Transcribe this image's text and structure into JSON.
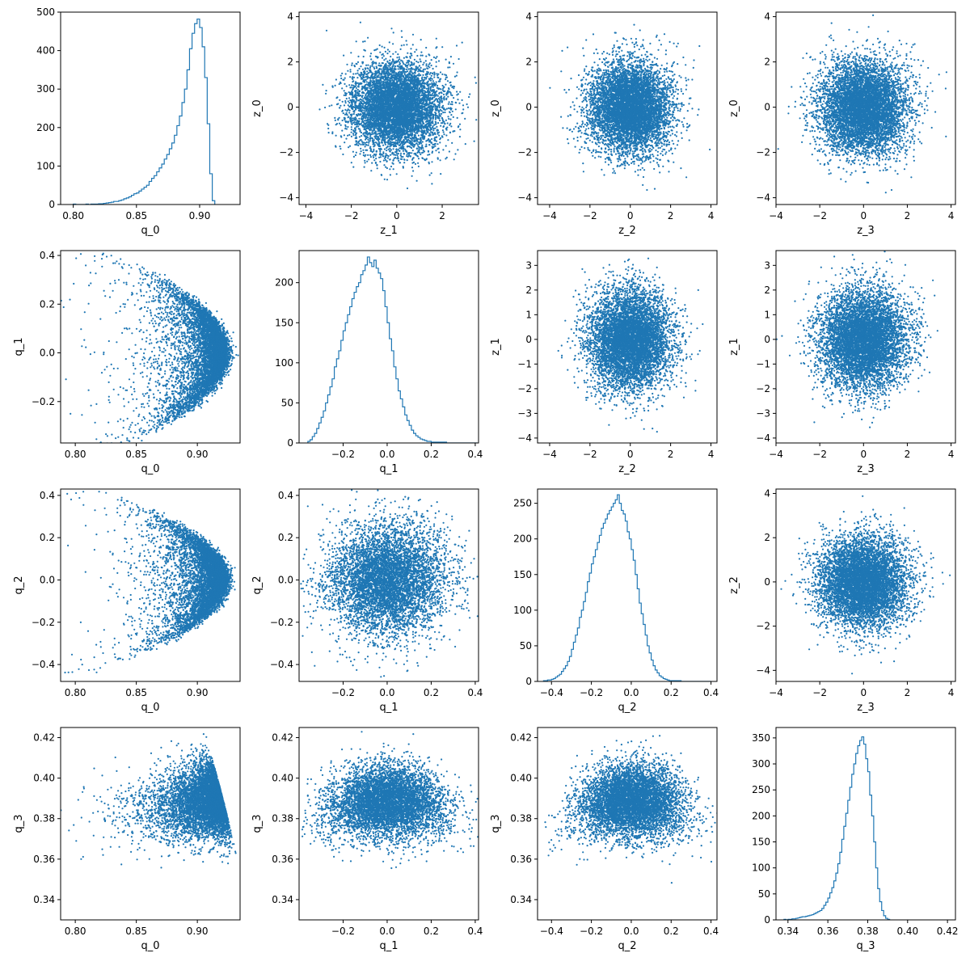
{
  "figure": {
    "rows": 4,
    "cols": 4,
    "accent_color": "#1f77b4"
  },
  "chart_data": [
    {
      "id": "p00",
      "type": "histogram",
      "xlabel": "q_0",
      "ylabel": "",
      "xlim": [
        0.79,
        0.932
      ],
      "ylim": [
        0,
        500
      ],
      "xticks": [
        "0.80",
        "0.85",
        "0.90"
      ],
      "yticks": [
        "0",
        "100",
        "200",
        "300",
        "400",
        "500"
      ],
      "bins_start": 0.8,
      "bin_width": 0.002,
      "counts": [
        1,
        0,
        0,
        0,
        0,
        1,
        0,
        1,
        1,
        1,
        2,
        2,
        3,
        4,
        5,
        6,
        8,
        8,
        10,
        12,
        15,
        17,
        20,
        24,
        28,
        30,
        35,
        40,
        45,
        50,
        60,
        68,
        75,
        85,
        95,
        105,
        118,
        130,
        145,
        160,
        180,
        205,
        230,
        265,
        300,
        350,
        405,
        445,
        470,
        482,
        460,
        410,
        330,
        210,
        80,
        10
      ]
    },
    {
      "id": "p01",
      "type": "scatter",
      "ylabel": "z_0",
      "xlabel": "z_1",
      "xlim": [
        -4.3,
        3.6
      ],
      "ylim": [
        -4.3,
        4.2
      ],
      "xticks": [
        "−4",
        "−2",
        "0",
        "2"
      ],
      "yticks": [
        "−4",
        "−2",
        "0",
        "2",
        "4"
      ],
      "dist": {
        "kind": "gaussian",
        "n": 6500,
        "mx": 0,
        "my": 0,
        "sx": 1,
        "sy": 1,
        "seed": 11
      }
    },
    {
      "id": "p02",
      "type": "scatter",
      "ylabel": "z_0",
      "xlabel": "z_2",
      "xlim": [
        -4.6,
        4.3
      ],
      "ylim": [
        -4.3,
        4.2
      ],
      "xticks": [
        "−4",
        "−2",
        "0",
        "2",
        "4"
      ],
      "yticks": [
        "−4",
        "−2",
        "0",
        "2",
        "4"
      ],
      "dist": {
        "kind": "gaussian",
        "n": 6500,
        "mx": 0,
        "my": 0,
        "sx": 1,
        "sy": 1,
        "seed": 12
      }
    },
    {
      "id": "p03",
      "type": "scatter",
      "ylabel": "z_0",
      "xlabel": "z_3",
      "xlim": [
        -4.0,
        4.2
      ],
      "ylim": [
        -4.3,
        4.2
      ],
      "xticks": [
        "−4",
        "−2",
        "0",
        "2",
        "4"
      ],
      "yticks": [
        "−4",
        "−2",
        "0",
        "2",
        "4"
      ],
      "dist": {
        "kind": "gaussian",
        "n": 6500,
        "mx": 0,
        "my": 0,
        "sx": 1,
        "sy": 1,
        "seed": 13
      }
    },
    {
      "id": "p10",
      "type": "scatter",
      "ylabel": "q_1",
      "xlabel": "q_0",
      "xlim": [
        0.788,
        0.935
      ],
      "ylim": [
        -0.37,
        0.42
      ],
      "xticks": [
        "0.80",
        "0.85",
        "0.90"
      ],
      "yticks": [
        "−0.2",
        "0.0",
        "0.2",
        "0.4"
      ],
      "dist": {
        "kind": "shell",
        "n": 6000,
        "a": "q0",
        "b": "q1",
        "seed": 21
      }
    },
    {
      "id": "p11",
      "type": "histogram",
      "xlabel": "q_1",
      "ylabel": "",
      "xlim": [
        -0.4,
        0.415
      ],
      "ylim": [
        0,
        240
      ],
      "xticks": [
        "−0.2",
        "0.0",
        "0.2",
        "0.4"
      ],
      "yticks": [
        "0",
        "50",
        "100",
        "150",
        "200"
      ],
      "bins_start": -0.36,
      "bin_width": 0.01,
      "counts": [
        2,
        4,
        8,
        12,
        18,
        25,
        32,
        40,
        50,
        60,
        70,
        80,
        95,
        105,
        115,
        128,
        140,
        150,
        160,
        170,
        180,
        188,
        195,
        200,
        210,
        215,
        222,
        232,
        225,
        220,
        228,
        218,
        212,
        205,
        190,
        170,
        150,
        130,
        115,
        95,
        80,
        65,
        55,
        45,
        35,
        28,
        22,
        16,
        12,
        9,
        7,
        5,
        4,
        3,
        2,
        2,
        1,
        1,
        1,
        1,
        1,
        1,
        1,
        0,
        0,
        0,
        0,
        0,
        0,
        0,
        0,
        0,
        0,
        0,
        0,
        0,
        0
      ]
    },
    {
      "id": "p12",
      "type": "scatter",
      "ylabel": "z_1",
      "xlabel": "z_2",
      "xlim": [
        -4.6,
        4.3
      ],
      "ylim": [
        -4.2,
        3.6
      ],
      "xticks": [
        "−4",
        "−2",
        "0",
        "2",
        "4"
      ],
      "yticks": [
        "−4",
        "−3",
        "−2",
        "−1",
        "0",
        "1",
        "2",
        "3"
      ],
      "dist": {
        "kind": "gaussian",
        "n": 6500,
        "mx": 0,
        "my": 0,
        "sx": 1,
        "sy": 1,
        "seed": 22
      }
    },
    {
      "id": "p13",
      "type": "scatter",
      "ylabel": "z_1",
      "xlabel": "z_3",
      "xlim": [
        -4.0,
        4.2
      ],
      "ylim": [
        -4.2,
        3.6
      ],
      "xticks": [
        "−4",
        "−2",
        "0",
        "2",
        "4"
      ],
      "yticks": [
        "−4",
        "−3",
        "−2",
        "−1",
        "0",
        "1",
        "2",
        "3"
      ],
      "dist": {
        "kind": "gaussian",
        "n": 6500,
        "mx": 0,
        "my": 0,
        "sx": 1,
        "sy": 1,
        "seed": 23
      }
    },
    {
      "id": "p20",
      "type": "scatter",
      "ylabel": "q_2",
      "xlabel": "q_0",
      "xlim": [
        0.788,
        0.935
      ],
      "ylim": [
        -0.48,
        0.43
      ],
      "xticks": [
        "0.80",
        "0.85",
        "0.90"
      ],
      "yticks": [
        "−0.4",
        "−0.2",
        "0.0",
        "0.2",
        "0.4"
      ],
      "dist": {
        "kind": "shell",
        "n": 6000,
        "a": "q0",
        "b": "q2",
        "seed": 31
      }
    },
    {
      "id": "p21",
      "type": "scatter",
      "ylabel": "q_2",
      "xlabel": "q_1",
      "xlim": [
        -0.4,
        0.415
      ],
      "ylim": [
        -0.48,
        0.43
      ],
      "xticks": [
        "−0.2",
        "0.0",
        "0.2",
        "0.4"
      ],
      "yticks": [
        "−0.4",
        "−0.2",
        "0.0",
        "0.2",
        "0.4"
      ],
      "dist": {
        "kind": "gaussian",
        "n": 6000,
        "mx": 0,
        "my": 0,
        "sx": 0.13,
        "sy": 0.13,
        "seed": 32
      }
    },
    {
      "id": "p22",
      "type": "histogram",
      "xlabel": "q_2",
      "ylabel": "",
      "xlim": [
        -0.47,
        0.43
      ],
      "ylim": [
        0,
        270
      ],
      "xticks": [
        "−0.4",
        "−0.2",
        "0.0",
        "0.2",
        "0.4"
      ],
      "yticks": [
        "0",
        "50",
        "100",
        "150",
        "200",
        "250"
      ],
      "bins_start": -0.44,
      "bin_width": 0.01,
      "counts": [
        1,
        1,
        2,
        2,
        3,
        4,
        6,
        8,
        10,
        14,
        18,
        22,
        28,
        35,
        45,
        55,
        65,
        75,
        90,
        100,
        112,
        125,
        140,
        152,
        165,
        175,
        185,
        195,
        205,
        215,
        222,
        228,
        235,
        240,
        245,
        250,
        255,
        262,
        250,
        240,
        235,
        225,
        210,
        200,
        185,
        170,
        150,
        130,
        110,
        95,
        80,
        65,
        50,
        40,
        30,
        22,
        16,
        12,
        8,
        6,
        4,
        3,
        2,
        1,
        1,
        1,
        1,
        1,
        1,
        0,
        0,
        0,
        0,
        0,
        0,
        0,
        0,
        0,
        0,
        0,
        0,
        0,
        0,
        0
      ]
    },
    {
      "id": "p23",
      "type": "scatter",
      "ylabel": "z_2",
      "xlabel": "z_3",
      "xlim": [
        -4.0,
        4.2
      ],
      "ylim": [
        -4.5,
        4.2
      ],
      "xticks": [
        "−4",
        "−2",
        "0",
        "2",
        "4"
      ],
      "yticks": [
        "−4",
        "−2",
        "0",
        "2",
        "4"
      ],
      "dist": {
        "kind": "gaussian",
        "n": 6500,
        "mx": 0,
        "my": 0,
        "sx": 1,
        "sy": 1,
        "seed": 33
      }
    },
    {
      "id": "p30",
      "type": "scatter",
      "ylabel": "q_3",
      "xlabel": "q_0",
      "xlim": [
        0.788,
        0.935
      ],
      "ylim": [
        0.33,
        0.425
      ],
      "xticks": [
        "0.80",
        "0.85",
        "0.90"
      ],
      "yticks": [
        "0.34",
        "0.36",
        "0.38",
        "0.40",
        "0.42"
      ],
      "dist": {
        "kind": "shell",
        "n": 6000,
        "a": "q0",
        "b": "q3",
        "seed": 41
      }
    },
    {
      "id": "p31",
      "type": "scatter",
      "ylabel": "q_3",
      "xlabel": "q_1",
      "xlim": [
        -0.4,
        0.415
      ],
      "ylim": [
        0.33,
        0.425
      ],
      "xticks": [
        "−0.2",
        "0.0",
        "0.2",
        "0.4"
      ],
      "yticks": [
        "0.34",
        "0.36",
        "0.38",
        "0.40",
        "0.42"
      ],
      "dist": {
        "kind": "shell",
        "n": 6000,
        "a": "q1",
        "b": "q3",
        "seed": 42
      }
    },
    {
      "id": "p32",
      "type": "scatter",
      "ylabel": "q_3",
      "xlabel": "q_2",
      "xlim": [
        -0.47,
        0.43
      ],
      "ylim": [
        0.33,
        0.425
      ],
      "xticks": [
        "−0.4",
        "−0.2",
        "0.0",
        "0.2",
        "0.4"
      ],
      "yticks": [
        "0.34",
        "0.36",
        "0.38",
        "0.40",
        "0.42"
      ],
      "dist": {
        "kind": "shell",
        "n": 6000,
        "a": "q2",
        "b": "q3",
        "seed": 43
      }
    },
    {
      "id": "p33",
      "type": "histogram",
      "xlabel": "q_3",
      "ylabel": "",
      "xlim": [
        0.334,
        0.424
      ],
      "ylim": [
        0,
        370
      ],
      "xticks": [
        "0.34",
        "0.36",
        "0.38",
        "0.40",
        "0.42"
      ],
      "yticks": [
        "0",
        "50",
        "100",
        "150",
        "200",
        "250",
        "300",
        "350"
      ],
      "bins_start": 0.338,
      "bin_width": 0.001,
      "counts": [
        1,
        0,
        1,
        1,
        2,
        2,
        3,
        4,
        5,
        6,
        6,
        7,
        8,
        9,
        10,
        12,
        14,
        16,
        18,
        22,
        28,
        34,
        42,
        52,
        62,
        75,
        90,
        108,
        130,
        155,
        180,
        205,
        230,
        255,
        280,
        300,
        320,
        335,
        345,
        352,
        338,
        310,
        285,
        240,
        200,
        150,
        100,
        60,
        35,
        18,
        8,
        3,
        1
      ]
    }
  ]
}
